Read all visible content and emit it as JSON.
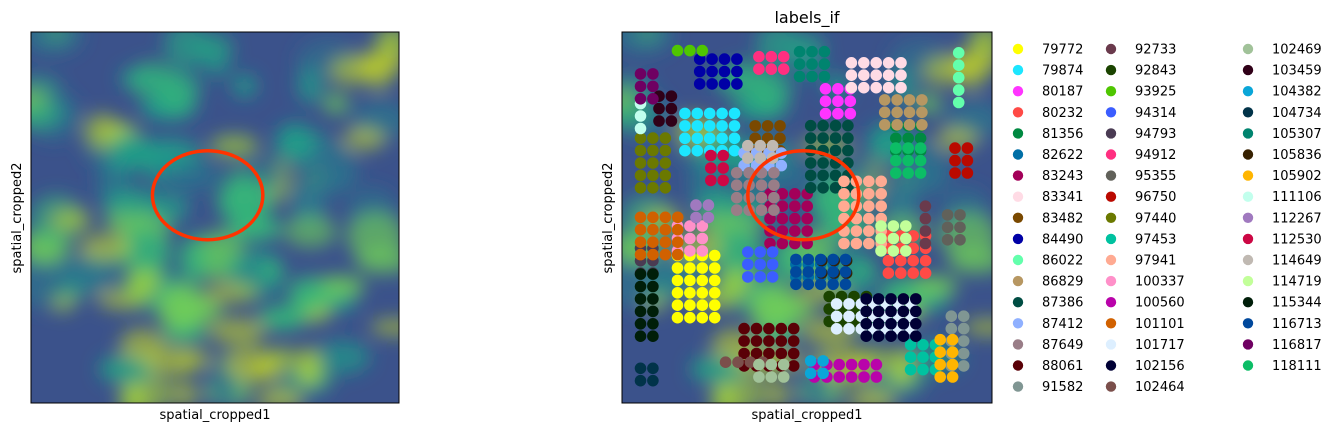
{
  "chart_data": [
    {
      "type": "heatmap",
      "title": "",
      "xlabel": "spatial_cropped1",
      "ylabel": "spatial_cropped2",
      "colormap": "viridis",
      "xticks": false,
      "yticks": false,
      "annotation": {
        "shape": "ellipse",
        "color": "#ff3300",
        "center": [
          0.48,
          0.56
        ],
        "radii": [
          0.15,
          0.12
        ]
      }
    },
    {
      "type": "scatter",
      "title": "labels_if",
      "xlabel": "spatial_cropped1",
      "ylabel": "spatial_cropped2",
      "background": "image (viridis)",
      "xticks": false,
      "yticks": false,
      "legend_placement": "right",
      "legend_columns": 3,
      "annotation": {
        "shape": "ellipse",
        "color": "#ff3300",
        "center": [
          0.49,
          0.56
        ],
        "radii": [
          0.15,
          0.12
        ]
      },
      "categories": [
        {
          "label": "79772",
          "color": "#ffff00"
        },
        {
          "label": "79874",
          "color": "#1ce6ff"
        },
        {
          "label": "80187",
          "color": "#ff34ff"
        },
        {
          "label": "80232",
          "color": "#ff4a46"
        },
        {
          "label": "81356",
          "color": "#008941"
        },
        {
          "label": "82622",
          "color": "#006fa6"
        },
        {
          "label": "83243",
          "color": "#a30059"
        },
        {
          "label": "83341",
          "color": "#ffdbe5"
        },
        {
          "label": "83482",
          "color": "#7a4900"
        },
        {
          "label": "84490",
          "color": "#0000a6"
        },
        {
          "label": "86022",
          "color": "#63ffac"
        },
        {
          "label": "86829",
          "color": "#b79762"
        },
        {
          "label": "87386",
          "color": "#004d43"
        },
        {
          "label": "87412",
          "color": "#8fb0ff"
        },
        {
          "label": "87649",
          "color": "#997d87"
        },
        {
          "label": "88061",
          "color": "#5a0007"
        },
        {
          "label": "91582",
          "color": "#809693"
        },
        {
          "label": "92733",
          "color": "#6a3a4c"
        },
        {
          "label": "92843",
          "color": "#1b4400"
        },
        {
          "label": "93925",
          "color": "#4fc601"
        },
        {
          "label": "94314",
          "color": "#3b5dff"
        },
        {
          "label": "94793",
          "color": "#4a3b53"
        },
        {
          "label": "94912",
          "color": "#ff2f80"
        },
        {
          "label": "95355",
          "color": "#61615a"
        },
        {
          "label": "96750",
          "color": "#ba0900"
        },
        {
          "label": "97440",
          "color": "#6b7900"
        },
        {
          "label": "97453",
          "color": "#00c2a0"
        },
        {
          "label": "97941",
          "color": "#ffaa92"
        },
        {
          "label": "100337",
          "color": "#ff90c9"
        },
        {
          "label": "100560",
          "color": "#b903aa"
        },
        {
          "label": "101101",
          "color": "#d16100"
        },
        {
          "label": "101717",
          "color": "#ddefff"
        },
        {
          "label": "102156",
          "color": "#000035"
        },
        {
          "label": "102464",
          "color": "#7b4f4b"
        },
        {
          "label": "102469",
          "color": "#a1c299"
        },
        {
          "label": "103459",
          "color": "#300018"
        },
        {
          "label": "104382",
          "color": "#0aa6d8"
        },
        {
          "label": "104734",
          "color": "#013349"
        },
        {
          "label": "105307",
          "color": "#00846f"
        },
        {
          "label": "105836",
          "color": "#372101"
        },
        {
          "label": "105902",
          "color": "#ffb500"
        },
        {
          "label": "111106",
          "color": "#c2ffed"
        },
        {
          "label": "112267",
          "color": "#a079bf"
        },
        {
          "label": "112530",
          "color": "#cc0744"
        },
        {
          "label": "114649",
          "color": "#c0b9b2"
        },
        {
          "label": "114719",
          "color": "#c2ff99"
        },
        {
          "label": "115344",
          "color": "#001e09"
        },
        {
          "label": "116713",
          "color": "#00489c"
        },
        {
          "label": "116817",
          "color": "#6f0062"
        },
        {
          "label": "118111",
          "color": "#0cbd66"
        }
      ],
      "clusters": [
        {
          "label": "79772",
          "x": [
            0.15,
            0.27
          ],
          "y": [
            0.23,
            0.43
          ]
        },
        {
          "label": "79874",
          "x": [
            0.17,
            0.32
          ],
          "y": [
            0.68,
            0.8
          ]
        },
        {
          "label": "80187",
          "x": [
            0.55,
            0.62
          ],
          "y": [
            0.78,
            0.86
          ]
        },
        {
          "label": "80232",
          "x": [
            0.72,
            0.85
          ],
          "y": [
            0.35,
            0.48
          ]
        },
        {
          "label": "81356",
          "x": [
            0.74,
            0.84
          ],
          "y": [
            0.68,
            0.78
          ]
        },
        {
          "label": "82622",
          "x": [
            0.47,
            0.6
          ],
          "y": [
            0.34,
            0.4
          ]
        },
        {
          "label": "83243",
          "x": [
            0.4,
            0.53
          ],
          "y": [
            0.43,
            0.57
          ]
        },
        {
          "label": "83341",
          "x": [
            0.62,
            0.78
          ],
          "y": [
            0.85,
            0.93
          ]
        },
        {
          "label": "83482",
          "x": [
            0.36,
            0.45
          ],
          "y": [
            0.68,
            0.76
          ]
        },
        {
          "label": "84490",
          "x": [
            0.21,
            0.32
          ],
          "y": [
            0.86,
            0.93
          ]
        },
        {
          "label": "86022",
          "x": [
            0.91,
            0.93
          ],
          "y": [
            0.81,
            0.96
          ]
        },
        {
          "label": "86829",
          "x": [
            0.71,
            0.84
          ],
          "y": [
            0.75,
            0.85
          ]
        },
        {
          "label": "87386",
          "x": [
            0.51,
            0.63
          ],
          "y": [
            0.58,
            0.75
          ]
        },
        {
          "label": "87412",
          "x": [
            0.33,
            0.44
          ],
          "y": [
            0.64,
            0.68
          ]
        },
        {
          "label": "87649",
          "x": [
            0.31,
            0.42
          ],
          "y": [
            0.52,
            0.63
          ]
        },
        {
          "label": "88061",
          "x": [
            0.33,
            0.47
          ],
          "y": [
            0.1,
            0.22
          ]
        },
        {
          "label": "91582",
          "x": [
            0.89,
            0.93
          ],
          "y": [
            0.1,
            0.26
          ]
        },
        {
          "label": "92733",
          "x": [
            0.82,
            0.85
          ],
          "y": [
            0.43,
            0.56
          ]
        },
        {
          "label": "92843",
          "x": [
            0.56,
            0.69
          ],
          "y": [
            0.22,
            0.3
          ]
        },
        {
          "label": "93925",
          "x": [
            0.15,
            0.22
          ],
          "y": [
            0.95,
            0.98
          ]
        },
        {
          "label": "94314",
          "x": [
            0.34,
            0.44
          ],
          "y": [
            0.34,
            0.42
          ]
        },
        {
          "label": "94793",
          "x": [
            0.05,
            0.09
          ],
          "y": [
            0.35,
            0.42
          ]
        },
        {
          "label": "94912",
          "x": [
            0.37,
            0.45
          ],
          "y": [
            0.9,
            0.95
          ]
        },
        {
          "label": "95355",
          "x": [
            0.88,
            0.93
          ],
          "y": [
            0.44,
            0.52
          ]
        },
        {
          "label": "96750",
          "x": [
            0.9,
            0.94
          ],
          "y": [
            0.62,
            0.69
          ]
        },
        {
          "label": "97440",
          "x": [
            0.05,
            0.12
          ],
          "y": [
            0.58,
            0.73
          ]
        },
        {
          "label": "97453",
          "x": [
            0.78,
            0.88
          ],
          "y": [
            0.09,
            0.18
          ]
        },
        {
          "label": "97941",
          "x": [
            0.6,
            0.72
          ],
          "y": [
            0.43,
            0.63
          ]
        },
        {
          "label": "100337",
          "x": [
            0.15,
            0.25
          ],
          "y": [
            0.41,
            0.49
          ]
        },
        {
          "label": "100560",
          "x": [
            0.52,
            0.71
          ],
          "y": [
            0.07,
            0.13
          ]
        },
        {
          "label": "101101",
          "x": [
            0.05,
            0.16
          ],
          "y": [
            0.4,
            0.51
          ]
        },
        {
          "label": "101717",
          "x": [
            0.58,
            0.8
          ],
          "y": [
            0.2,
            0.3
          ]
        },
        {
          "label": "102156",
          "x": [
            0.66,
            0.81
          ],
          "y": [
            0.18,
            0.3
          ]
        },
        {
          "label": "102464",
          "x": [
            0.28,
            0.4
          ],
          "y": [
            0.11,
            0.14
          ]
        },
        {
          "label": "102469",
          "x": [
            0.37,
            0.45
          ],
          "y": [
            0.07,
            0.11
          ]
        },
        {
          "label": "103459",
          "x": [
            0.1,
            0.15
          ],
          "y": [
            0.76,
            0.86
          ]
        },
        {
          "label": "104382",
          "x": [
            0.51,
            0.56
          ],
          "y": [
            0.08,
            0.12
          ]
        },
        {
          "label": "104734",
          "x": [
            0.05,
            0.09
          ],
          "y": [
            0.06,
            0.1
          ]
        },
        {
          "label": "105307",
          "x": [
            0.48,
            0.56
          ],
          "y": [
            0.88,
            0.96
          ]
        },
        {
          "label": "105836",
          "x": [
            0.54,
            0.61
          ],
          "y": [
            0.35,
            0.4
          ]
        },
        {
          "label": "105902",
          "x": [
            0.86,
            0.92
          ],
          "y": [
            0.07,
            0.19
          ]
        },
        {
          "label": "111106",
          "x": [
            0.05,
            0.06
          ],
          "y": [
            0.74,
            0.82
          ]
        },
        {
          "label": "112267",
          "x": [
            0.2,
            0.26
          ],
          "y": [
            0.5,
            0.56
          ]
        },
        {
          "label": "112530",
          "x": [
            0.24,
            0.3
          ],
          "y": [
            0.6,
            0.67
          ]
        },
        {
          "label": "114649",
          "x": [
            0.34,
            0.42
          ],
          "y": [
            0.66,
            0.7
          ]
        },
        {
          "label": "114719",
          "x": [
            0.7,
            0.78
          ],
          "y": [
            0.41,
            0.48
          ]
        },
        {
          "label": "115344",
          "x": [
            0.05,
            0.09
          ],
          "y": [
            0.18,
            0.35
          ]
        },
        {
          "label": "116713",
          "x": [
            0.47,
            0.62
          ],
          "y": [
            0.32,
            0.4
          ]
        },
        {
          "label": "116817",
          "x": [
            0.05,
            0.09
          ],
          "y": [
            0.82,
            0.9
          ]
        },
        {
          "label": "118111",
          "x": [
            0.74,
            0.84
          ],
          "y": [
            0.62,
            0.7
          ]
        }
      ]
    }
  ]
}
